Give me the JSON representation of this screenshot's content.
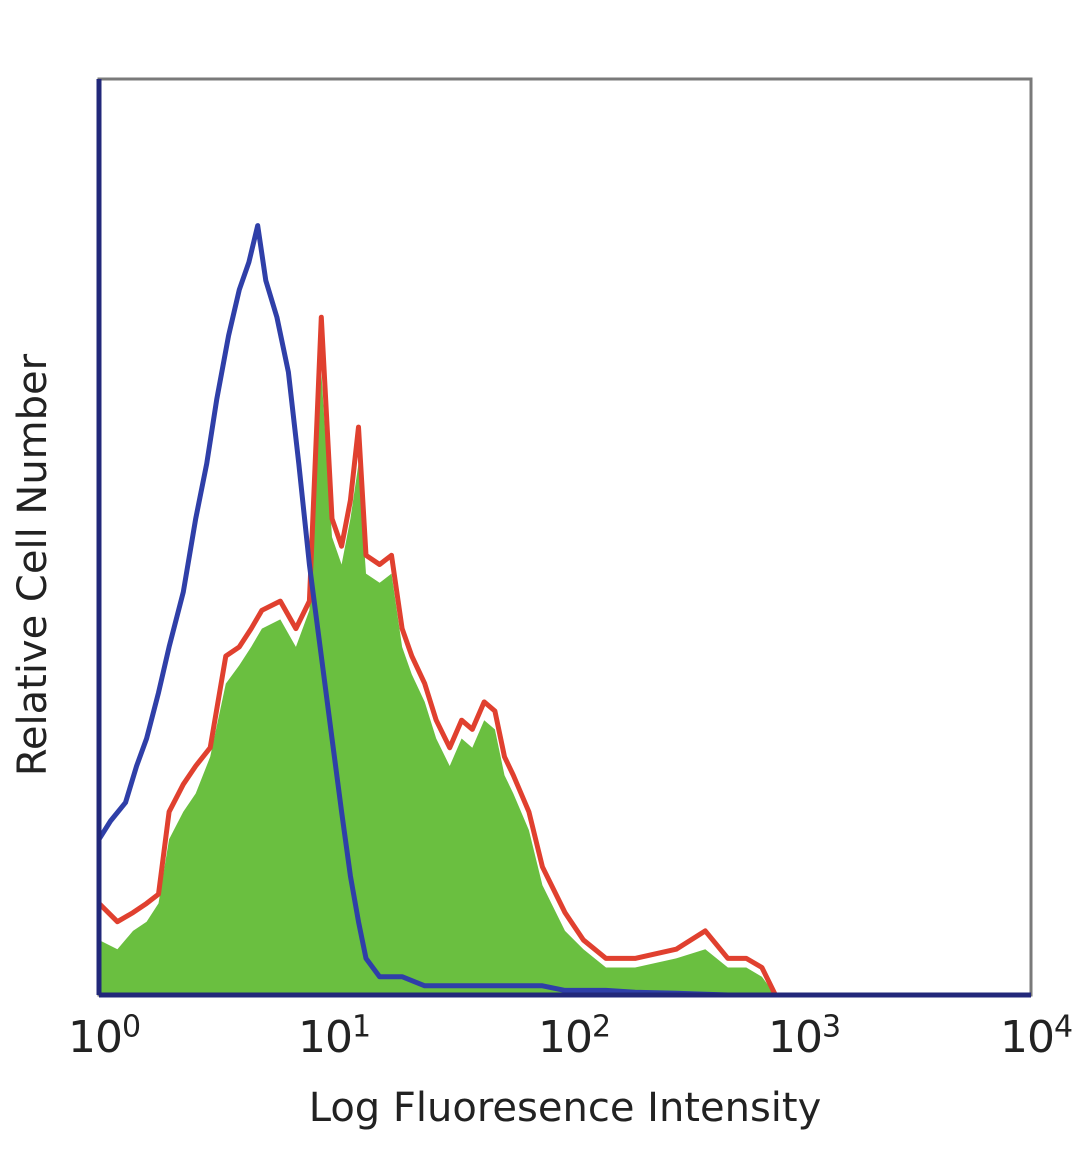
{
  "chart_data": {
    "type": "area",
    "title": "",
    "xlabel": "Log Fluoresence Intensity",
    "ylabel": "Relative Cell Number",
    "xscale": "log",
    "xlim": [
      1,
      10000
    ],
    "ylim": [
      0,
      100
    ],
    "grid": false,
    "legend": "none",
    "x_ticks": [
      {
        "base": "10",
        "exp": "0",
        "value": 1
      },
      {
        "base": "10",
        "exp": "1",
        "value": 10
      },
      {
        "base": "10",
        "exp": "2",
        "value": 100
      },
      {
        "base": "10",
        "exp": "3",
        "value": 1000
      },
      {
        "base": "10",
        "exp": "4",
        "value": 10000
      }
    ],
    "colors": {
      "axis": "#22287a",
      "blue_series": "#2f3fa8",
      "red_series": "#e0402f",
      "green_fill": "#6abf40"
    },
    "series": [
      {
        "color": "#2f3fa8",
        "style": "line",
        "points": [
          [
            1,
            17
          ],
          [
            1.12,
            19
          ],
          [
            1.3,
            21
          ],
          [
            1.45,
            25
          ],
          [
            1.6,
            28
          ],
          [
            1.8,
            33
          ],
          [
            2.0,
            38
          ],
          [
            2.3,
            44
          ],
          [
            2.6,
            52
          ],
          [
            2.9,
            58
          ],
          [
            3.2,
            65
          ],
          [
            3.6,
            72
          ],
          [
            4.0,
            77
          ],
          [
            4.4,
            80
          ],
          [
            4.8,
            84
          ],
          [
            5.2,
            78
          ],
          [
            5.8,
            74
          ],
          [
            6.5,
            68
          ],
          [
            7.2,
            58
          ],
          [
            8.0,
            47
          ],
          [
            9.0,
            37
          ],
          [
            10,
            28
          ],
          [
            11,
            20
          ],
          [
            12,
            13
          ],
          [
            13,
            8
          ],
          [
            14,
            4
          ],
          [
            16,
            2
          ],
          [
            20,
            2
          ],
          [
            25,
            1
          ],
          [
            30,
            1
          ],
          [
            40,
            1
          ],
          [
            50,
            1
          ],
          [
            60,
            1
          ],
          [
            80,
            1
          ],
          [
            100,
            0.5
          ],
          [
            150,
            0.5
          ],
          [
            200,
            0.3
          ],
          [
            300,
            0.2
          ],
          [
            500,
            0
          ]
        ]
      },
      {
        "color": "#e0402f",
        "style": "line",
        "points": [
          [
            1,
            10
          ],
          [
            1.2,
            8
          ],
          [
            1.4,
            9
          ],
          [
            1.6,
            10
          ],
          [
            1.8,
            11
          ],
          [
            2.0,
            20
          ],
          [
            2.3,
            23
          ],
          [
            2.6,
            25
          ],
          [
            3.0,
            27
          ],
          [
            3.5,
            37
          ],
          [
            4.0,
            38
          ],
          [
            4.5,
            40
          ],
          [
            5.0,
            42
          ],
          [
            6.0,
            43
          ],
          [
            7.0,
            40
          ],
          [
            8.0,
            43
          ],
          [
            9.0,
            74
          ],
          [
            10,
            52
          ],
          [
            11,
            49
          ],
          [
            12,
            54
          ],
          [
            13,
            62
          ],
          [
            14,
            48
          ],
          [
            16,
            47
          ],
          [
            18,
            48
          ],
          [
            20,
            40
          ],
          [
            22,
            37
          ],
          [
            25,
            34
          ],
          [
            28,
            30
          ],
          [
            32,
            27
          ],
          [
            36,
            30
          ],
          [
            40,
            29
          ],
          [
            45,
            32
          ],
          [
            50,
            31
          ],
          [
            55,
            26
          ],
          [
            60,
            24
          ],
          [
            70,
            20
          ],
          [
            80,
            14
          ],
          [
            100,
            9
          ],
          [
            120,
            6
          ],
          [
            150,
            4
          ],
          [
            200,
            4
          ],
          [
            300,
            5
          ],
          [
            400,
            7
          ],
          [
            500,
            4
          ],
          [
            600,
            4
          ],
          [
            700,
            3
          ],
          [
            800,
            0
          ]
        ]
      },
      {
        "color": "#6abf40",
        "style": "filled",
        "points": [
          [
            1,
            6
          ],
          [
            1.2,
            5
          ],
          [
            1.4,
            7
          ],
          [
            1.6,
            8
          ],
          [
            1.8,
            10
          ],
          [
            2.0,
            17
          ],
          [
            2.3,
            20
          ],
          [
            2.6,
            22
          ],
          [
            3.0,
            26
          ],
          [
            3.5,
            34
          ],
          [
            4.0,
            36
          ],
          [
            4.5,
            38
          ],
          [
            5.0,
            40
          ],
          [
            6.0,
            41
          ],
          [
            7.0,
            38
          ],
          [
            8.0,
            42
          ],
          [
            9.0,
            68
          ],
          [
            10,
            50
          ],
          [
            11,
            47
          ],
          [
            12,
            52
          ],
          [
            13,
            58
          ],
          [
            14,
            46
          ],
          [
            16,
            45
          ],
          [
            18,
            46
          ],
          [
            20,
            38
          ],
          [
            22,
            35
          ],
          [
            25,
            32
          ],
          [
            28,
            28
          ],
          [
            32,
            25
          ],
          [
            36,
            28
          ],
          [
            40,
            27
          ],
          [
            45,
            30
          ],
          [
            50,
            29
          ],
          [
            55,
            24
          ],
          [
            60,
            22
          ],
          [
            70,
            18
          ],
          [
            80,
            12
          ],
          [
            100,
            7
          ],
          [
            120,
            5
          ],
          [
            150,
            3
          ],
          [
            200,
            3
          ],
          [
            300,
            4
          ],
          [
            400,
            5
          ],
          [
            500,
            3
          ],
          [
            600,
            3
          ],
          [
            700,
            2
          ],
          [
            800,
            0
          ]
        ]
      }
    ]
  }
}
